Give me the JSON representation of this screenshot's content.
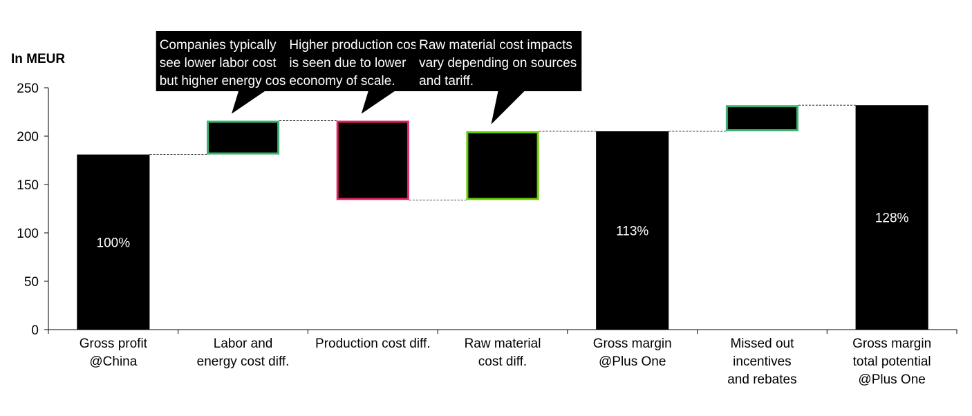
{
  "chart_data": {
    "type": "waterfall",
    "ylabel": "In MEUR",
    "ylim": [
      0,
      250
    ],
    "yticks": [
      0,
      50,
      100,
      150,
      200,
      250
    ],
    "grid": false,
    "connectors": true,
    "categories": [
      [
        "Gross profit",
        "@China"
      ],
      [
        "Labor and",
        "energy cost diff."
      ],
      [
        "Production cost diff."
      ],
      [
        "Raw material",
        "cost diff."
      ],
      [
        "Gross margin",
        "@Plus One"
      ],
      [
        "Missed out",
        "incentives",
        "and rebates"
      ],
      [
        "Gross margin",
        "total potential",
        "@Plus One"
      ]
    ],
    "bars": [
      {
        "kind": "total",
        "start": 0,
        "end": 181,
        "label": "100%",
        "fill": "#000000",
        "border": "#000000"
      },
      {
        "kind": "delta",
        "start": 181,
        "end": 216,
        "fill": "#000000",
        "border": "#3cb371"
      },
      {
        "kind": "delta",
        "start": 216,
        "end": 134,
        "fill": "#000000",
        "border": "#e0245e"
      },
      {
        "kind": "delta",
        "start": 134,
        "end": 205,
        "fill": "#000000",
        "border": "#66cc00"
      },
      {
        "kind": "total",
        "start": 0,
        "end": 205,
        "label": "113%",
        "fill": "#000000",
        "border": "#000000"
      },
      {
        "kind": "delta",
        "start": 205,
        "end": 232,
        "fill": "#000000",
        "border": "#3cb371"
      },
      {
        "kind": "total",
        "start": 0,
        "end": 232,
        "label": "128%",
        "fill": "#000000",
        "border": "#000000"
      }
    ],
    "annotations": [
      {
        "bar": 1,
        "lines": [
          "Companies typically",
          "see lower labor cost",
          "but higher energy cost."
        ]
      },
      {
        "bar": 2,
        "lines": [
          "Higher production cost",
          "is seen due to lower",
          "economy of scale."
        ]
      },
      {
        "bar": 3,
        "lines": [
          "Raw material cost impacts",
          "vary depending on sources",
          "and tariff."
        ]
      }
    ]
  }
}
